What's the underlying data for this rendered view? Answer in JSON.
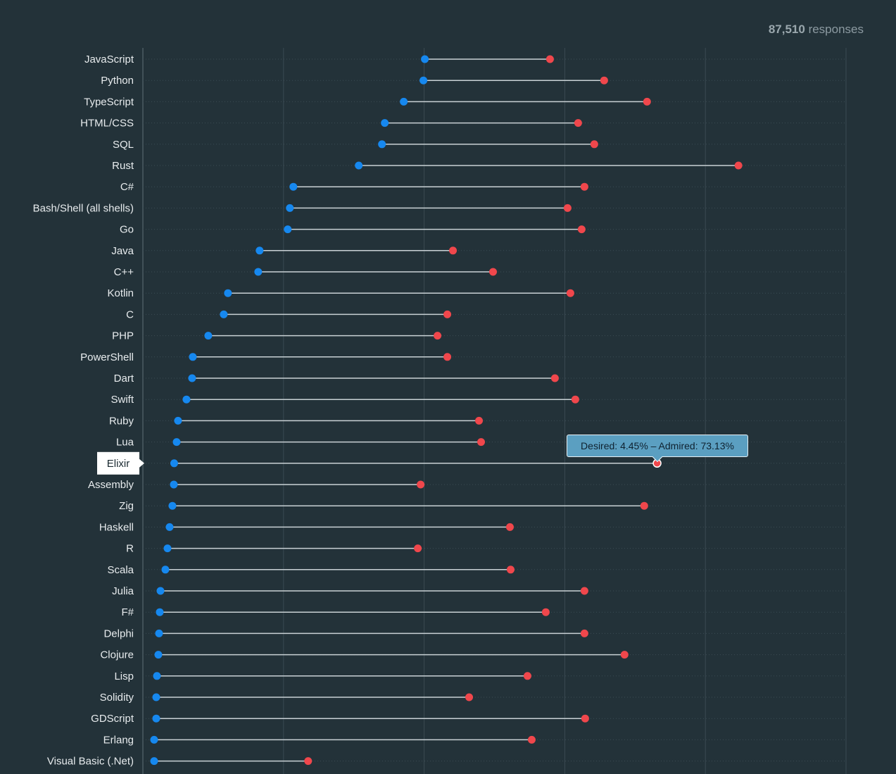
{
  "header": {
    "responses_count": "87,510",
    "responses_label": "responses"
  },
  "tooltip": {
    "text": "Desired: 4.45% – Admired: 73.13%"
  },
  "highlighted_language": "Elixir",
  "colors": {
    "background": "#233239",
    "desired": "#1688ef",
    "admired": "#f0474c",
    "connector": "#c9d1d5",
    "label": "#e8ecee",
    "highlight_bg": "#ffffff",
    "highlight_text": "#1b2a31"
  },
  "chart_data": {
    "type": "dumbbell",
    "xlim": [
      0,
      100
    ],
    "grid": true,
    "series": [
      {
        "name": "Desired",
        "key": "desired"
      },
      {
        "name": "Admired",
        "key": "admired"
      }
    ],
    "categories": [
      "JavaScript",
      "Python",
      "TypeScript",
      "HTML/CSS",
      "SQL",
      "Rust",
      "C#",
      "Bash/Shell (all shells)",
      "Go",
      "Java",
      "C++",
      "Kotlin",
      "C",
      "PHP",
      "PowerShell",
      "Dart",
      "Swift",
      "Ruby",
      "Lua",
      "Elixir",
      "Assembly",
      "Zig",
      "Haskell",
      "R",
      "Scala",
      "Julia",
      "F#",
      "Delphi",
      "Clojure",
      "Lisp",
      "Solidity",
      "GDScript",
      "Erlang",
      "Visual Basic (.Net)"
    ],
    "desired": [
      40.1,
      39.9,
      37.1,
      34.4,
      34.0,
      30.7,
      21.4,
      20.9,
      20.6,
      16.6,
      16.4,
      12.1,
      11.5,
      9.3,
      7.1,
      7.0,
      6.2,
      5.0,
      4.8,
      4.45,
      4.4,
      4.2,
      3.8,
      3.5,
      3.2,
      2.5,
      2.4,
      2.3,
      2.2,
      2.0,
      1.9,
      1.9,
      1.6,
      1.6
    ],
    "admired": [
      57.9,
      65.6,
      71.7,
      61.9,
      64.2,
      84.7,
      62.8,
      60.4,
      62.4,
      44.1,
      49.8,
      60.8,
      43.3,
      41.9,
      43.3,
      58.6,
      61.5,
      47.8,
      48.1,
      73.13,
      39.5,
      71.3,
      52.2,
      39.1,
      52.3,
      62.8,
      57.3,
      62.8,
      68.5,
      54.7,
      46.4,
      62.9,
      55.3,
      23.5
    ]
  }
}
